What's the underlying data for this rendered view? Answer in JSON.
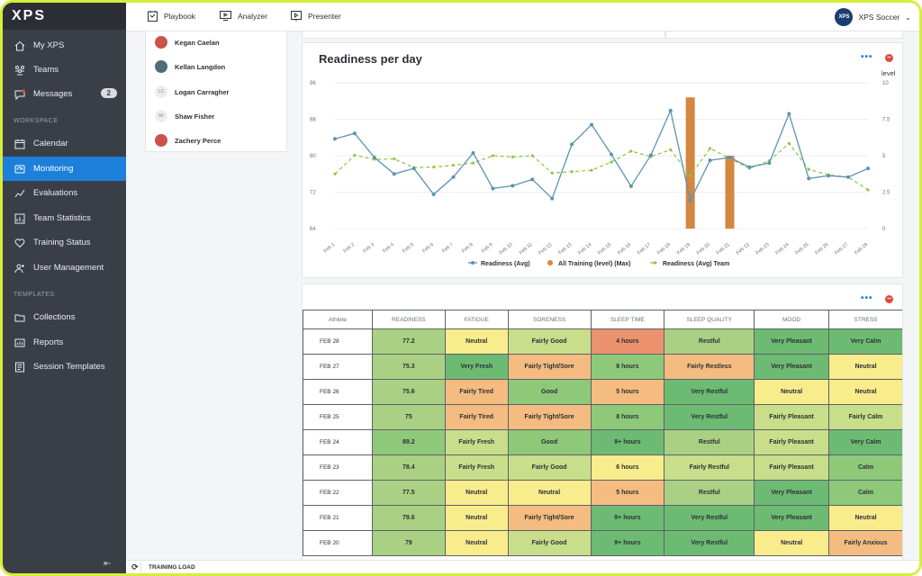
{
  "app": {
    "logo": "XPS"
  },
  "sidebar": {
    "items": [
      {
        "label": "My XPS",
        "icon": "home-icon"
      },
      {
        "label": "Teams",
        "icon": "teams-icon"
      },
      {
        "label": "Messages",
        "icon": "message-icon",
        "badge": "2"
      }
    ],
    "workspace_label": "WORKSPACE",
    "workspace": [
      {
        "label": "Calendar",
        "icon": "calendar-icon"
      },
      {
        "label": "Monitoring",
        "icon": "monitor-icon",
        "active": true
      },
      {
        "label": "Evaluations",
        "icon": "evaluations-icon"
      },
      {
        "label": "Team Statistics",
        "icon": "statistics-icon"
      },
      {
        "label": "Training Status",
        "icon": "heart-icon"
      },
      {
        "label": "User Management",
        "icon": "user-add-icon"
      }
    ],
    "templates_label": "TEMPLATES",
    "templates": [
      {
        "label": "Collections",
        "icon": "folder-icon"
      },
      {
        "label": "Reports",
        "icon": "report-icon"
      },
      {
        "label": "Session Templates",
        "icon": "session-icon"
      }
    ],
    "collapse_icon": "collapse-icon"
  },
  "topbar": {
    "playbook": "Playbook",
    "analyzer": "Analyzer",
    "presenter": "Presenter",
    "org_avatar": "XPS",
    "org_name": "XPS Soccer"
  },
  "athletes": [
    {
      "name": "Kegan Caelan",
      "initials": ""
    },
    {
      "name": "Kellan Langdon",
      "initials": ""
    },
    {
      "name": "Logan Carragher",
      "initials": "LC"
    },
    {
      "name": "Shaw Fisher",
      "initials": "SF"
    },
    {
      "name": "Zachery Perce",
      "initials": ""
    }
  ],
  "chart_data": {
    "type": "line",
    "title": "Readiness per day",
    "y2label": "level",
    "x": [
      "Feb 1",
      "Feb 2",
      "Feb 3",
      "Feb 4",
      "Feb 5",
      "Feb 6",
      "Feb 7",
      "Feb 8",
      "Feb 9",
      "Feb 10",
      "Feb 11",
      "Feb 12",
      "Feb 13",
      "Feb 14",
      "Feb 15",
      "Feb 16",
      "Feb 17",
      "Feb 18",
      "Feb 19",
      "Feb 20",
      "Feb 21",
      "Feb 22",
      "Feb 23",
      "Feb 24",
      "Feb 25",
      "Feb 26",
      "Feb 27",
      "Feb 28"
    ],
    "yticks": [
      64,
      72,
      80,
      88,
      96
    ],
    "ylim": [
      64,
      96
    ],
    "y2ticks": [
      0,
      2.5,
      5,
      7.5,
      10
    ],
    "y2lim": [
      0,
      10
    ],
    "series": [
      {
        "name": "Readiness (Avg)",
        "color": "#5b93b3",
        "axis": "left",
        "kind": "line",
        "values": [
          83.7,
          84.9,
          79.6,
          76.0,
          77.2,
          71.5,
          75.3,
          80.6,
          72.8,
          73.4,
          74.8,
          70.6,
          82.5,
          86.8,
          80.3,
          73.3,
          80.1,
          89.9,
          70.2,
          79.0,
          79.6,
          77.5,
          78.4,
          89.2,
          75.0,
          75.6,
          75.3,
          77.2
        ]
      },
      {
        "name": "All Training (level) (Max)",
        "color": "#d4873e",
        "axis": "right",
        "kind": "bar",
        "bars": [
          {
            "x": "Feb 19",
            "value": 9.0
          },
          {
            "x": "Feb 21",
            "value": 5.0
          }
        ]
      },
      {
        "name": "Readiness (Avg) Team",
        "color": "#8cc63f",
        "axis": "left",
        "kind": "dashed",
        "values": [
          76.0,
          80.1,
          79.2,
          79.3,
          77.4,
          77.5,
          77.9,
          78.4,
          80.0,
          79.7,
          80.0,
          76.2,
          76.5,
          76.8,
          78.6,
          81.0,
          79.8,
          81.3,
          75.6,
          81.6,
          79.4,
          77.2,
          78.9,
          82.7,
          77.0,
          75.8,
          75.3,
          72.5
        ]
      }
    ]
  },
  "table": {
    "headers": [
      "Athlete",
      "READINESS",
      "FATIGUE",
      "SORENESS",
      "SLEEP TIME",
      "SLEEP QUALITY",
      "MOOD",
      "STRESS"
    ],
    "rows": [
      {
        "cells": [
          "FEB 28",
          "77.2",
          "Neutral",
          "Fairly Good",
          "4 hours",
          "Restful",
          "Very Pleasant",
          "Very Calm"
        ],
        "colors": [
          "",
          "c-lg",
          "c-y",
          "c-yg",
          "c-r",
          "c-lg",
          "c-dg",
          "c-dg"
        ]
      },
      {
        "cells": [
          "FEB 27",
          "75.3",
          "Very Fresh",
          "Fairly Tight/Sore",
          "8 hours",
          "Fairly Restless",
          "Very Pleasant",
          "Neutral"
        ],
        "colors": [
          "",
          "c-lg",
          "c-dg",
          "c-o",
          "c-g",
          "c-o",
          "c-dg",
          "c-y"
        ]
      },
      {
        "cells": [
          "FEB 26",
          "75.6",
          "Fairly Tired",
          "Good",
          "5 hours",
          "Very Restful",
          "Neutral",
          "Neutral"
        ],
        "colors": [
          "",
          "c-lg",
          "c-o",
          "c-g",
          "c-o",
          "c-dg",
          "c-y",
          "c-y"
        ]
      },
      {
        "cells": [
          "FEB 25",
          "75",
          "Fairly Tired",
          "Fairly Tight/Sore",
          "8 hours",
          "Very Restful",
          "Fairly Pleasant",
          "Fairly Calm"
        ],
        "colors": [
          "",
          "c-lg",
          "c-o",
          "c-o",
          "c-g",
          "c-dg",
          "c-yg",
          "c-yg"
        ]
      },
      {
        "cells": [
          "FEB 24",
          "89.2",
          "Fairly Fresh",
          "Good",
          "9+ hours",
          "Restful",
          "Fairly Pleasant",
          "Very Calm"
        ],
        "colors": [
          "",
          "c-g",
          "c-yg",
          "c-g",
          "c-dg",
          "c-lg",
          "c-yg",
          "c-dg"
        ]
      },
      {
        "cells": [
          "FEB 23",
          "78.4",
          "Fairly Fresh",
          "Fairly Good",
          "6 hours",
          "Fairly Restful",
          "Fairly Pleasant",
          "Calm"
        ],
        "colors": [
          "",
          "c-lg",
          "c-yg",
          "c-yg",
          "c-y",
          "c-yg",
          "c-yg",
          "c-g"
        ]
      },
      {
        "cells": [
          "FEB 22",
          "77.5",
          "Neutral",
          "Neutral",
          "5 hours",
          "Restful",
          "Very Pleasant",
          "Calm"
        ],
        "colors": [
          "",
          "c-lg",
          "c-y",
          "c-y",
          "c-o",
          "c-lg",
          "c-dg",
          "c-g"
        ]
      },
      {
        "cells": [
          "FEB 21",
          "79.6",
          "Neutral",
          "Fairly Tight/Sore",
          "9+ hours",
          "Very Restful",
          "Very Pleasant",
          "Neutral"
        ],
        "colors": [
          "",
          "c-lg",
          "c-y",
          "c-o",
          "c-dg",
          "c-dg",
          "c-dg",
          "c-y"
        ]
      },
      {
        "cells": [
          "FEB 20",
          "79",
          "Neutral",
          "Fairly Good",
          "9+ hours",
          "Very Restful",
          "Neutral",
          "Fairly Anxious"
        ],
        "colors": [
          "",
          "c-lg",
          "c-y",
          "c-yg",
          "c-dg",
          "c-dg",
          "c-y",
          "c-o"
        ]
      }
    ]
  },
  "bottombar": {
    "label": "TRAINING LOAD"
  }
}
